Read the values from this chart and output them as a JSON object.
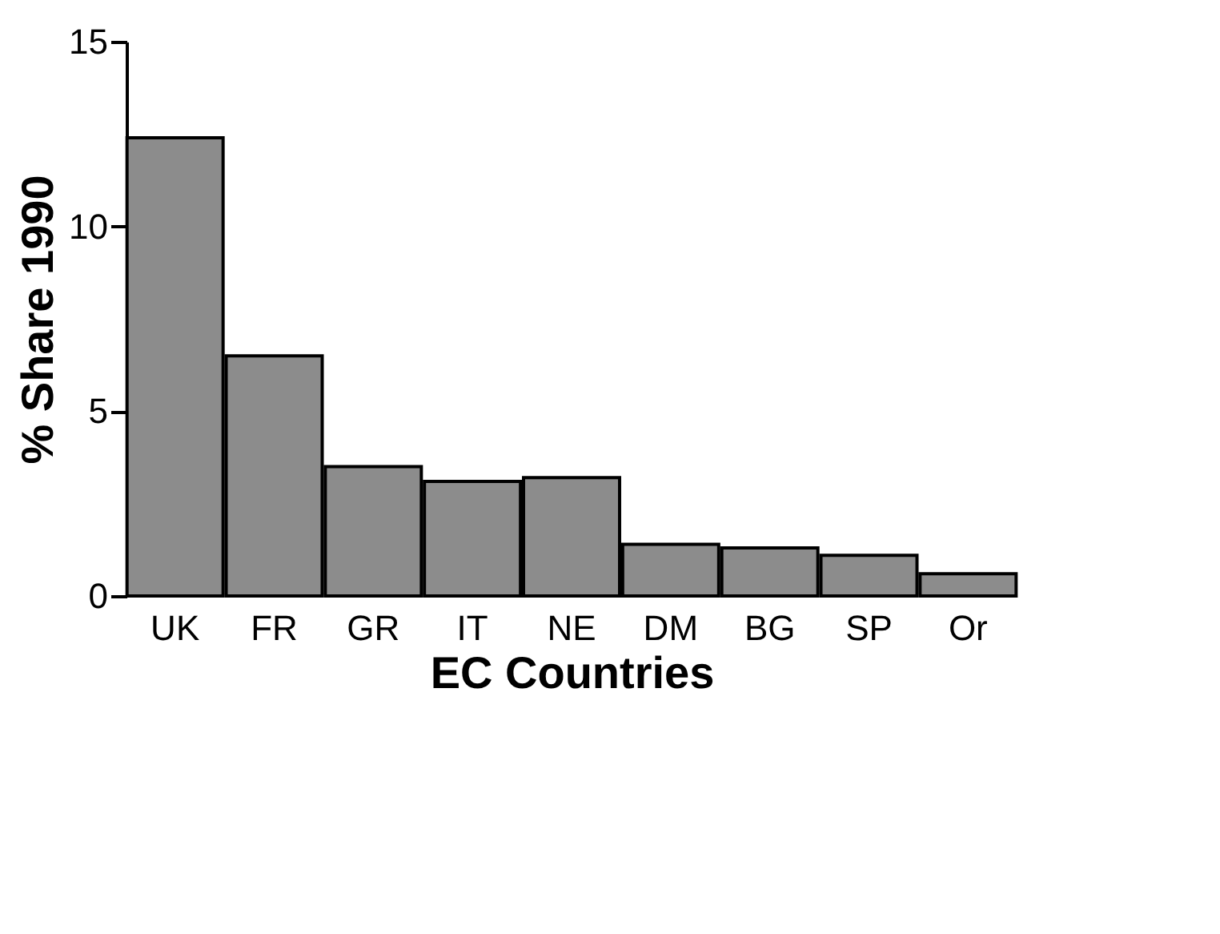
{
  "chart_data": {
    "type": "bar",
    "xlabel": "EC Countries",
    "ylabel": "% Share 1990",
    "categories": [
      "UK",
      "FR",
      "GR",
      "IT",
      "NE",
      "DM",
      "BG",
      "SP",
      "Or"
    ],
    "values": [
      12.4,
      6.5,
      3.5,
      3.1,
      3.2,
      1.4,
      1.3,
      1.1,
      0.6
    ],
    "color": "#8c8c8c",
    "ylim": [
      0,
      15
    ],
    "yticks": [
      0,
      5,
      10,
      15
    ],
    "grid": false
  }
}
